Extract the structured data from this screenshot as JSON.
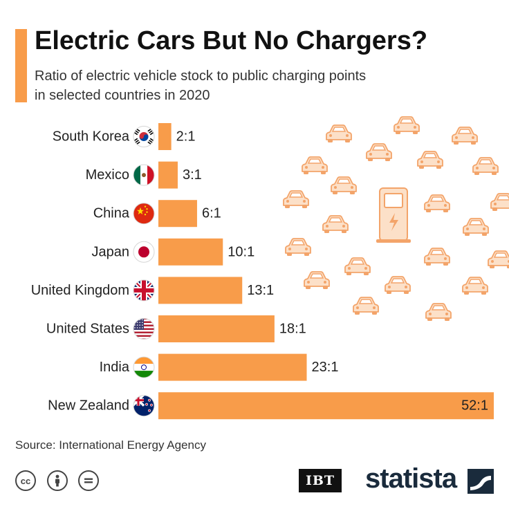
{
  "title": "Electric Cars But No Chargers?",
  "subtitle": [
    "Ratio of electric vehicle stock to public charging points",
    "in selected countries in 2020"
  ],
  "source": "Source: International Energy Agency",
  "license_icons": [
    "cc",
    "by",
    "nd"
  ],
  "logos": {
    "ibt": "IBT",
    "statista": "statista"
  },
  "colors": {
    "accent": "#f89c4a",
    "bar": "#f89c4a",
    "car_icon_fill": "#fce0c8",
    "car_icon_stroke": "#f3a46a"
  },
  "chart_data": {
    "type": "bar",
    "orientation": "horizontal",
    "categories": [
      "South Korea",
      "Mexico",
      "China",
      "Japan",
      "United Kingdom",
      "United States",
      "India",
      "New Zealand"
    ],
    "values": [
      2,
      3,
      6,
      10,
      13,
      18,
      23,
      52
    ],
    "value_labels": [
      "2:1",
      "3:1",
      "6:1",
      "10:1",
      "13:1",
      "18:1",
      "23:1",
      "52:1"
    ],
    "flags": [
      "south-korea-flag",
      "mexico-flag",
      "china-flag",
      "japan-flag",
      "uk-flag",
      "us-flag",
      "india-flag",
      "new-zealand-flag"
    ],
    "xlim": [
      0,
      52
    ],
    "grid": false
  }
}
